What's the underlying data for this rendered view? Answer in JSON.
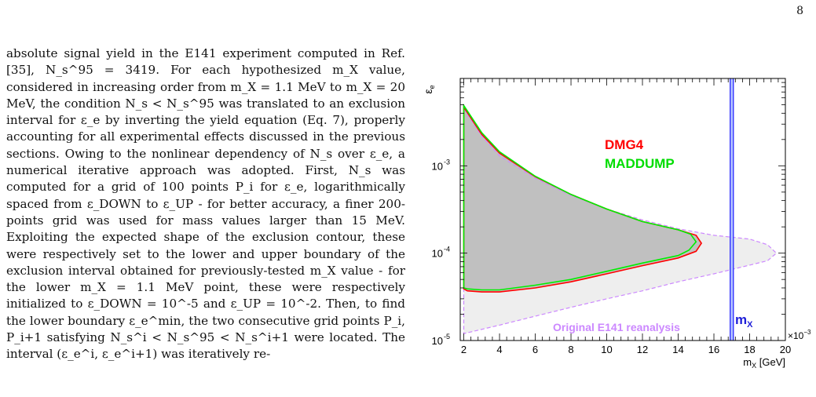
{
  "page": {
    "number": "8"
  },
  "body_text": "absolute signal yield in the E141 experiment computed in Ref. [35], N_s^95 = 3419. For each hypothesized m_X value, considered in increasing order from m_X = 1.1 MeV to m_X = 20 MeV, the condition N_s < N_s^95 was translated to an exclusion interval for ε_e by inverting the yield equation (Eq. 7), properly accounting for all experimental effects discussed in the previous sections. Owing to the nonlinear dependency of N_s over ε_e, a numerical iterative approach was adopted. First, N_s was computed for a grid of 100 points P_i for ε_e, logarithmically spaced from ε_DOWN to ε_UP - for better accuracy, a finer 200-points grid was used for mass values larger than 15 MeV. Exploiting the expected shape of the exclusion contour, these were respectively set to the lower and upper boundary of the exclusion interval obtained for previously-tested m_X value - for the lower m_X = 1.1 MeV point, these were respectively initialized to ε_DOWN = 10^-5 and ε_UP = 10^-2. Then, to find the lower boundary ε_e^min, the two consecutive grid points P_i, P_i+1 satisfying N_s^i < N_s^95 < N_s^i+1 were located. The interval (ε_e^i, ε_e^i+1) was iteratively re-",
  "chart_data": {
    "type": "area",
    "xlabel": "m_X [GeV]",
    "ylabel": "ε_e",
    "x_multiplier": "×10^-3",
    "xlim": [
      1.8,
      20
    ],
    "ylim": [
      1e-05,
      0.01
    ],
    "yscale": "log",
    "x_tick_labels": [
      "2",
      "4",
      "6",
      "8",
      "10",
      "12",
      "14",
      "16",
      "18",
      "20"
    ],
    "y_tick_labels": [
      "10^-5",
      "10^-4",
      "10^-3"
    ],
    "series": [
      {
        "name": "DMG4",
        "color": "#ff0000",
        "points": [
          [
            2.0,
            0.0047
          ],
          [
            3.0,
            0.0023
          ],
          [
            4.0,
            0.0014
          ],
          [
            6.0,
            0.00075
          ],
          [
            8.0,
            0.00047
          ],
          [
            10.0,
            0.00032
          ],
          [
            12.0,
            0.00023
          ],
          [
            14.0,
            0.000185
          ],
          [
            15.0,
            0.00016
          ],
          [
            15.3,
            0.00013
          ],
          [
            15.0,
            0.000105
          ],
          [
            14.0,
            8.8e-05
          ],
          [
            12.0,
            7.2e-05
          ],
          [
            10.0,
            5.8e-05
          ],
          [
            8.0,
            4.7e-05
          ],
          [
            6.0,
            4e-05
          ],
          [
            4.0,
            3.6e-05
          ],
          [
            3.0,
            3.6e-05
          ],
          [
            2.2,
            3.7e-05
          ],
          [
            2.0,
            3.9e-05
          ]
        ]
      },
      {
        "name": "MADDUMP",
        "color": "#00ee00",
        "points": [
          [
            2.0,
            0.0049
          ],
          [
            3.0,
            0.0024
          ],
          [
            4.0,
            0.00145
          ],
          [
            6.0,
            0.00076
          ],
          [
            8.0,
            0.00047
          ],
          [
            10.0,
            0.00032
          ],
          [
            12.0,
            0.00023
          ],
          [
            14.0,
            0.000185
          ],
          [
            14.7,
            0.000165
          ],
          [
            15.0,
            0.000135
          ],
          [
            14.6,
            0.000108
          ],
          [
            14.0,
            9.4e-05
          ],
          [
            12.0,
            7.7e-05
          ],
          [
            10.0,
            6.2e-05
          ],
          [
            8.0,
            5e-05
          ],
          [
            6.0,
            4.3e-05
          ],
          [
            4.0,
            3.8e-05
          ],
          [
            3.0,
            3.8e-05
          ],
          [
            2.2,
            3.9e-05
          ],
          [
            2.0,
            4e-05
          ]
        ]
      },
      {
        "name": "Original E141 reanalysis",
        "color": "#cc88ff",
        "points": [
          [
            2.0,
            0.0045
          ],
          [
            3.0,
            0.0022
          ],
          [
            4.0,
            0.0013
          ],
          [
            6.0,
            0.00072
          ],
          [
            8.0,
            0.00046
          ],
          [
            10.0,
            0.00032
          ],
          [
            12.0,
            0.00024
          ],
          [
            14.0,
            0.00019
          ],
          [
            16.0,
            0.00016
          ],
          [
            18.0,
            0.000145
          ],
          [
            19.0,
            0.000125
          ],
          [
            19.5,
            0.0001
          ],
          [
            19.0,
            8.2e-05
          ],
          [
            18.0,
            7.3e-05
          ],
          [
            16.0,
            5.8e-05
          ],
          [
            14.0,
            4.7e-05
          ],
          [
            12.0,
            3.7e-05
          ],
          [
            10.0,
            3e-05
          ],
          [
            8.0,
            2.4e-05
          ],
          [
            6.0,
            1.9e-05
          ],
          [
            4.0,
            1.5e-05
          ],
          [
            2.0,
            1.2e-05
          ]
        ]
      }
    ],
    "vertical_line": {
      "label": "m_X",
      "x": 17.0,
      "color": "#3333ff"
    },
    "grid": false
  }
}
